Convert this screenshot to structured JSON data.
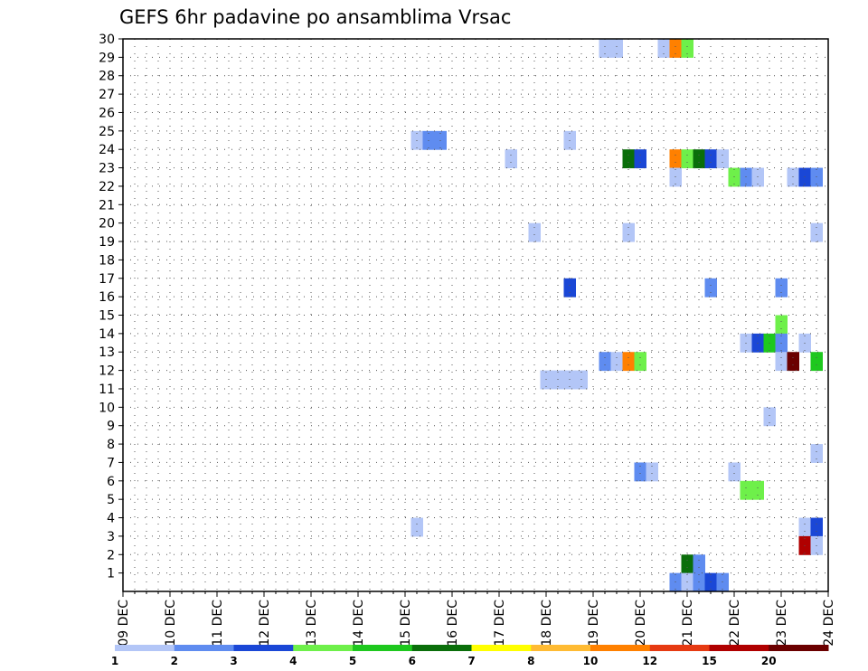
{
  "chart_data": {
    "type": "heatmap",
    "title": "GEFS 6hr padavine po ansamblima Vrsac",
    "xlabel": "",
    "ylabel": "",
    "x_tick_labels": [
      "09 DEC",
      "10 DEC",
      "11 DEC",
      "12 DEC",
      "13 DEC",
      "14 DEC",
      "15 DEC",
      "16 DEC",
      "17 DEC",
      "18 DEC",
      "19 DEC",
      "20 DEC",
      "21 DEC",
      "22 DEC",
      "23 DEC",
      "24 DEC"
    ],
    "y_tick_labels": [
      "1",
      "2",
      "3",
      "4",
      "5",
      "6",
      "7",
      "8",
      "9",
      "10",
      "11",
      "12",
      "13",
      "14",
      "15",
      "16",
      "17",
      "18",
      "19",
      "20",
      "21",
      "22",
      "23",
      "24",
      "25",
      "26",
      "27",
      "28",
      "29",
      "30"
    ],
    "ylim": [
      0,
      30
    ],
    "xlim_days": [
      0,
      15
    ],
    "grid": true,
    "colorbar": {
      "labels": [
        "1",
        "2",
        "3",
        "4",
        "5",
        "6",
        "7",
        "8",
        "10",
        "12",
        "15",
        "20"
      ],
      "colors": [
        "#b3c6f7",
        "#5f8cf0",
        "#1a47d6",
        "#6ef04a",
        "#1ec81e",
        "#0a6e0a",
        "#ffff00",
        "#ffbb33",
        "#ff8000",
        "#e63a12",
        "#b00000",
        "#6b0000"
      ]
    },
    "cells": [
      {
        "x": 10.25,
        "y": 30,
        "v": 1
      },
      {
        "x": 10.5,
        "y": 30,
        "v": 1
      },
      {
        "x": 11.5,
        "y": 30,
        "v": 1
      },
      {
        "x": 11.75,
        "y": 30,
        "v": 10
      },
      {
        "x": 12.0,
        "y": 30,
        "v": 4
      },
      {
        "x": 6.25,
        "y": 25,
        "v": 1
      },
      {
        "x": 6.5,
        "y": 25,
        "v": 2
      },
      {
        "x": 6.75,
        "y": 25,
        "v": 2
      },
      {
        "x": 9.5,
        "y": 25,
        "v": 1
      },
      {
        "x": 8.25,
        "y": 24,
        "v": 1
      },
      {
        "x": 10.75,
        "y": 24,
        "v": 6
      },
      {
        "x": 11.0,
        "y": 24,
        "v": 3
      },
      {
        "x": 11.75,
        "y": 24,
        "v": 10
      },
      {
        "x": 12.0,
        "y": 24,
        "v": 4
      },
      {
        "x": 12.25,
        "y": 24,
        "v": 6
      },
      {
        "x": 12.5,
        "y": 24,
        "v": 3
      },
      {
        "x": 12.75,
        "y": 24,
        "v": 1
      },
      {
        "x": 11.75,
        "y": 23,
        "v": 1
      },
      {
        "x": 13.0,
        "y": 23,
        "v": 4
      },
      {
        "x": 13.25,
        "y": 23,
        "v": 2
      },
      {
        "x": 13.5,
        "y": 23,
        "v": 1
      },
      {
        "x": 14.25,
        "y": 23,
        "v": 1
      },
      {
        "x": 14.5,
        "y": 23,
        "v": 3
      },
      {
        "x": 14.75,
        "y": 23,
        "v": 2
      },
      {
        "x": 8.75,
        "y": 20,
        "v": 1
      },
      {
        "x": 10.75,
        "y": 20,
        "v": 1
      },
      {
        "x": 14.75,
        "y": 20,
        "v": 1
      },
      {
        "x": 9.5,
        "y": 17,
        "v": 3
      },
      {
        "x": 12.5,
        "y": 17,
        "v": 2
      },
      {
        "x": 14.0,
        "y": 17,
        "v": 2
      },
      {
        "x": 14.0,
        "y": 15,
        "v": 4
      },
      {
        "x": 14.5,
        "y": 14,
        "v": 1
      },
      {
        "x": 13.25,
        "y": 14,
        "v": 1
      },
      {
        "x": 13.5,
        "y": 14,
        "v": 3
      },
      {
        "x": 13.75,
        "y": 14,
        "v": 5
      },
      {
        "x": 14.0,
        "y": 14,
        "v": 2
      },
      {
        "x": 10.25,
        "y": 13,
        "v": 2
      },
      {
        "x": 10.5,
        "y": 13,
        "v": 1
      },
      {
        "x": 10.75,
        "y": 13,
        "v": 10
      },
      {
        "x": 11.0,
        "y": 13,
        "v": 4
      },
      {
        "x": 14.0,
        "y": 13,
        "v": 1
      },
      {
        "x": 14.25,
        "y": 13,
        "v": 20
      },
      {
        "x": 14.75,
        "y": 13,
        "v": 5
      },
      {
        "x": 9.0,
        "y": 12,
        "v": 1
      },
      {
        "x": 9.25,
        "y": 12,
        "v": 1
      },
      {
        "x": 9.5,
        "y": 12,
        "v": 1
      },
      {
        "x": 9.75,
        "y": 12,
        "v": 1
      },
      {
        "x": 13.75,
        "y": 10,
        "v": 1
      },
      {
        "x": 14.75,
        "y": 8,
        "v": 1
      },
      {
        "x": 11.0,
        "y": 7,
        "v": 2
      },
      {
        "x": 11.25,
        "y": 7,
        "v": 1
      },
      {
        "x": 13.0,
        "y": 7,
        "v": 1
      },
      {
        "x": 13.25,
        "y": 6,
        "v": 4
      },
      {
        "x": 13.5,
        "y": 6,
        "v": 4
      },
      {
        "x": 6.25,
        "y": 4,
        "v": 1
      },
      {
        "x": 14.5,
        "y": 4,
        "v": 1
      },
      {
        "x": 14.75,
        "y": 4,
        "v": 3
      },
      {
        "x": 14.5,
        "y": 3,
        "v": 15
      },
      {
        "x": 14.75,
        "y": 3,
        "v": 1
      },
      {
        "x": 12.0,
        "y": 2,
        "v": 6
      },
      {
        "x": 12.25,
        "y": 2,
        "v": 2
      },
      {
        "x": 11.75,
        "y": 1,
        "v": 2
      },
      {
        "x": 12.0,
        "y": 1,
        "v": 1
      },
      {
        "x": 12.25,
        "y": 1,
        "v": 2
      },
      {
        "x": 12.5,
        "y": 1,
        "v": 3
      },
      {
        "x": 12.75,
        "y": 1,
        "v": 2
      }
    ]
  }
}
